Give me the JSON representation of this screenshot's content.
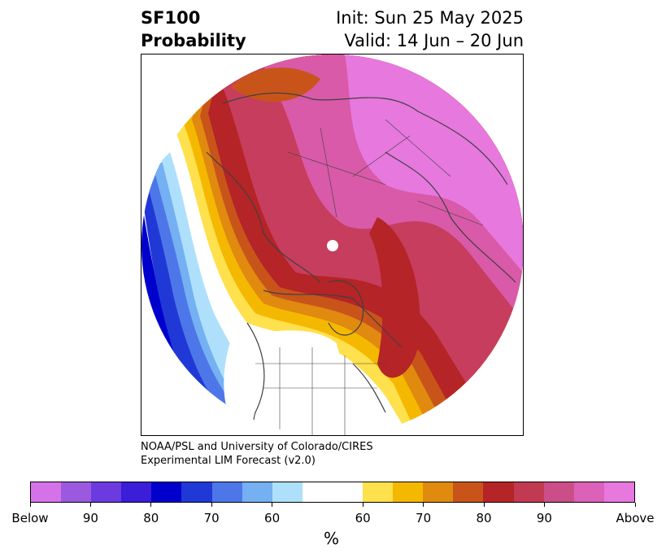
{
  "header": {
    "title_line1": "SF100",
    "title_line2": "Probability",
    "init_text": "Init: Sun 25 May 2025",
    "valid_text": "Valid: 14 Jun – 20 Jun"
  },
  "credit": {
    "line1": "NOAA/PSL and University of Colorado/CIRES",
    "line2": "Experimental LIM Forecast (v2.0)"
  },
  "colorbar": {
    "colors": [
      "#d672e8",
      "#9b59e0",
      "#6b3be0",
      "#3a1ed8",
      "#0000cc",
      "#2039d6",
      "#4d77e8",
      "#74b0f2",
      "#aee0fb",
      "#ffffff",
      "#ffffff",
      "#ffe04d",
      "#f5b800",
      "#e08a10",
      "#c9541a",
      "#b52426",
      "#c23a52",
      "#cc4e88",
      "#db62b8",
      "#e678de"
    ],
    "labels": [
      "Below",
      "90",
      "80",
      "70",
      "60",
      "60",
      "70",
      "80",
      "90",
      "Above"
    ],
    "unit": "%"
  },
  "map": {
    "projection": "north-polar-stereographic",
    "palette": {
      "magenta": "#e678de",
      "pink": "#d85aa8",
      "rose": "#c73d5e",
      "crimson": "#b52426",
      "orange_red": "#c9541a",
      "orange": "#e08a10",
      "gold": "#f5b800",
      "yellow": "#ffe04d",
      "light_blue": "#aee0fb",
      "sky_blue": "#74b0f2",
      "mid_blue": "#4d77e8",
      "blue": "#2039d6",
      "deep_blue": "#0000cc"
    }
  }
}
